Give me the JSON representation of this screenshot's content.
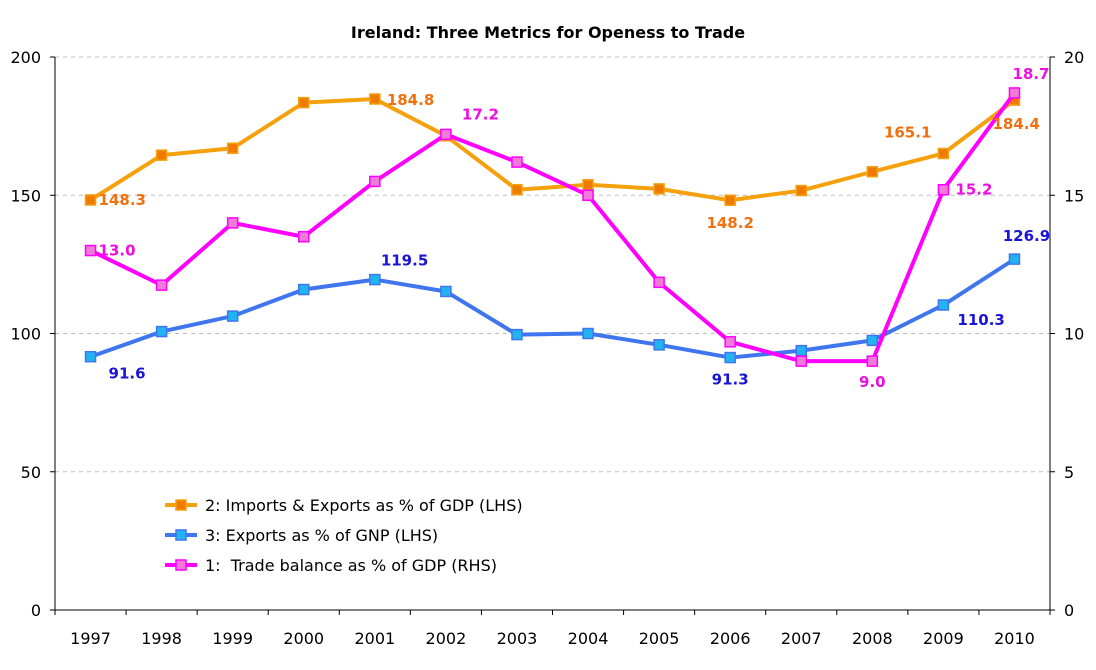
{
  "chart_data": {
    "type": "line",
    "title": "Ireland: Three Metrics for Openess to Trade",
    "categories": [
      "1997",
      "1998",
      "1999",
      "2000",
      "2001",
      "2002",
      "2003",
      "2004",
      "2005",
      "2006",
      "2007",
      "2008",
      "2009",
      "2010"
    ],
    "left_axis": {
      "min": 0,
      "max": 200,
      "ticks": [
        0,
        50,
        100,
        150,
        200
      ],
      "tick_labels": [
        "0",
        "50",
        "100",
        "150",
        "200"
      ]
    },
    "right_axis": {
      "min": 0,
      "max": 20,
      "ticks": [
        0,
        5,
        10,
        15,
        20
      ],
      "tick_labels": [
        "0",
        "5",
        "10",
        "15",
        "20"
      ]
    },
    "series": [
      {
        "name": "2: Imports & Exports as % of GDP (LHS)",
        "axis": "left",
        "line_color": "#f5a00d",
        "marker_color": "#ee7a00",
        "label_color": "#f07010",
        "values": [
          148.3,
          164.5,
          167,
          183.5,
          184.8,
          171.5,
          152,
          153.8,
          152.3,
          148.2,
          151.7,
          158.5,
          165.1,
          184.4
        ],
        "labels": [
          {
            "i": 0,
            "text": "148.3"
          },
          {
            "i": 4,
            "text": "184.8"
          },
          {
            "i": 9,
            "text": "148.2"
          },
          {
            "i": 12,
            "text": "165.1"
          },
          {
            "i": 13,
            "text": "184.4"
          }
        ]
      },
      {
        "name": "3: Exports as % of GNP (LHS)",
        "axis": "left",
        "line_color": "#3f76ee",
        "marker_color": "#22b4f0",
        "label_color": "#1a14d6",
        "values": [
          91.6,
          100.7,
          106.3,
          115.9,
          119.5,
          115.2,
          99.6,
          100,
          95.9,
          91.3,
          93.8,
          97.5,
          110.3,
          126.9
        ],
        "labels": [
          {
            "i": 0,
            "text": "91.6"
          },
          {
            "i": 4,
            "text": "119.5"
          },
          {
            "i": 9,
            "text": "91.3"
          },
          {
            "i": 12,
            "text": "110.3"
          },
          {
            "i": 13,
            "text": "126.9"
          }
        ]
      },
      {
        "name": "1:  Trade balance as % of GDP (RHS)",
        "axis": "right",
        "line_color": "#ff00ff",
        "marker_color": "#f07ad8",
        "label_color": "#ee10e0",
        "values": [
          13.0,
          11.75,
          14.0,
          13.5,
          15.5,
          17.2,
          16.2,
          15.0,
          11.85,
          9.7,
          9.0,
          9.0,
          15.2,
          18.7
        ],
        "labels": [
          {
            "i": 0,
            "text": "13.0"
          },
          {
            "i": 5,
            "text": "17.2"
          },
          {
            "i": 11,
            "text": "9.0"
          },
          {
            "i": 12,
            "text": "15.2"
          },
          {
            "i": 13,
            "text": "18.7"
          }
        ]
      }
    ],
    "legend_order": [
      0,
      1,
      2
    ],
    "grid": "dashed horizontal"
  }
}
